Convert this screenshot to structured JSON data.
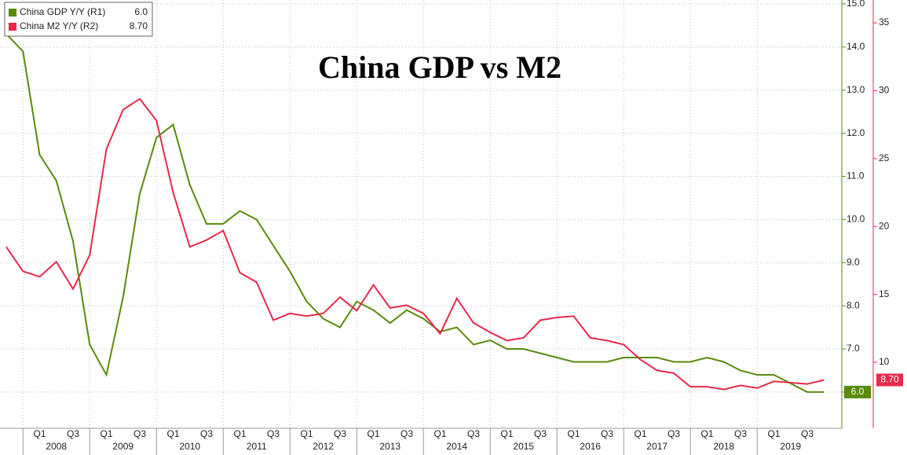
{
  "chart_data": {
    "type": "line",
    "title": "China GDP vs M2",
    "categories": [
      null,
      null,
      "Q1",
      null,
      "Q3",
      null,
      "Q1",
      null,
      "Q3",
      null,
      "Q1",
      null,
      "Q3",
      null,
      "Q1",
      null,
      "Q3",
      null,
      "Q1",
      null,
      "Q3",
      null,
      "Q1",
      null,
      "Q3",
      null,
      "Q1",
      null,
      "Q3",
      null,
      "Q1",
      null,
      "Q3",
      null,
      "Q1",
      null,
      "Q3",
      null,
      "Q1",
      null,
      "Q3",
      null,
      "Q1",
      null,
      "Q3",
      null,
      "Q1",
      null,
      "Q3",
      null
    ],
    "years": [
      "2008",
      "2009",
      "2010",
      "2011",
      "2012",
      "2013",
      "2014",
      "2015",
      "2016",
      "2017",
      "2018",
      "2019"
    ],
    "series": [
      {
        "name": "China GDP Y/Y (R1)",
        "color": "#5a8a0c",
        "last_label": "6.0",
        "values": [
          14.3,
          13.9,
          11.5,
          10.9,
          9.5,
          7.1,
          6.4,
          8.2,
          10.6,
          11.9,
          12.2,
          10.8,
          9.9,
          9.9,
          10.2,
          10.0,
          9.4,
          8.8,
          8.1,
          7.7,
          7.5,
          8.1,
          7.9,
          7.6,
          7.9,
          7.7,
          7.4,
          7.5,
          7.1,
          7.2,
          7.0,
          7.0,
          6.9,
          6.8,
          6.7,
          6.7,
          6.7,
          6.8,
          6.8,
          6.8,
          6.7,
          6.7,
          6.8,
          6.7,
          6.5,
          6.4,
          6.4,
          6.2,
          6.0,
          6.0
        ]
      },
      {
        "name": "China M2 Y/Y (R2)",
        "color": "#e8294a",
        "axis": "y2",
        "last_label": "8.70",
        "values": [
          18.5,
          16.7,
          16.3,
          17.4,
          15.4,
          17.9,
          25.7,
          28.6,
          29.4,
          27.8,
          22.5,
          18.5,
          19.0,
          19.7,
          16.6,
          15.9,
          13.1,
          13.6,
          13.4,
          13.6,
          14.8,
          13.8,
          15.7,
          14.0,
          14.2,
          13.6,
          12.1,
          14.7,
          12.9,
          12.2,
          11.6,
          11.8,
          13.1,
          13.3,
          13.4,
          11.8,
          11.6,
          11.3,
          10.2,
          9.4,
          9.2,
          8.2,
          8.2,
          8.0,
          8.3,
          8.1,
          8.6,
          8.5,
          8.4,
          8.7
        ]
      }
    ],
    "ylim": [
      5.16,
      15.09
    ],
    "yticks": [
      {
        "value": 6,
        "label": "6.0"
      },
      {
        "value": 7,
        "label": "7.0"
      },
      {
        "value": 8,
        "label": "8.0"
      },
      {
        "value": 9,
        "label": "9.0"
      },
      {
        "value": 10,
        "label": "10.0"
      },
      {
        "value": 11,
        "label": "11.0"
      },
      {
        "value": 12,
        "label": "12.0"
      },
      {
        "value": 13,
        "label": "13.0"
      },
      {
        "value": 14,
        "label": "14.0"
      },
      {
        "value": 15,
        "label": "15.0"
      }
    ],
    "y2lim": [
      5.14,
      36.68
    ],
    "y2ticks": [
      10,
      15,
      20,
      25,
      30,
      35
    ],
    "grid": true,
    "legend": "top-left"
  }
}
